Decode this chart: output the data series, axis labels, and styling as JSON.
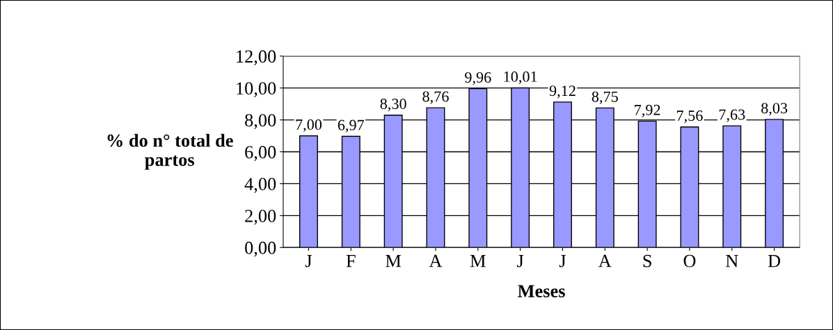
{
  "chart_data": {
    "type": "bar",
    "xlabel": "Meses",
    "ylabel": "% do n° total de\npartos",
    "categories": [
      "J",
      "F",
      "M",
      "A",
      "M",
      "J",
      "J",
      "A",
      "S",
      "O",
      "N",
      "D"
    ],
    "values": [
      7.0,
      6.97,
      8.3,
      8.76,
      9.96,
      10.01,
      9.12,
      8.75,
      7.92,
      7.56,
      7.63,
      8.03
    ],
    "value_labels": [
      "7,00",
      "6,97",
      "8,30",
      "8,76",
      "9,96",
      "10,01",
      "9,12",
      "8,75",
      "7,92",
      "7,56",
      "7,63",
      "8,03"
    ],
    "color": "#9999ff",
    "ylim": [
      0,
      12
    ],
    "yticks": [
      {
        "value": 0,
        "label": "0,00"
      },
      {
        "value": 2,
        "label": "2,00"
      },
      {
        "value": 4,
        "label": "4,00"
      },
      {
        "value": 6,
        "label": "6,00"
      },
      {
        "value": 8,
        "label": "8,00"
      },
      {
        "value": 10,
        "label": "10,00"
      },
      {
        "value": 12,
        "label": "12,00"
      }
    ],
    "grid": "y",
    "legend": false
  }
}
